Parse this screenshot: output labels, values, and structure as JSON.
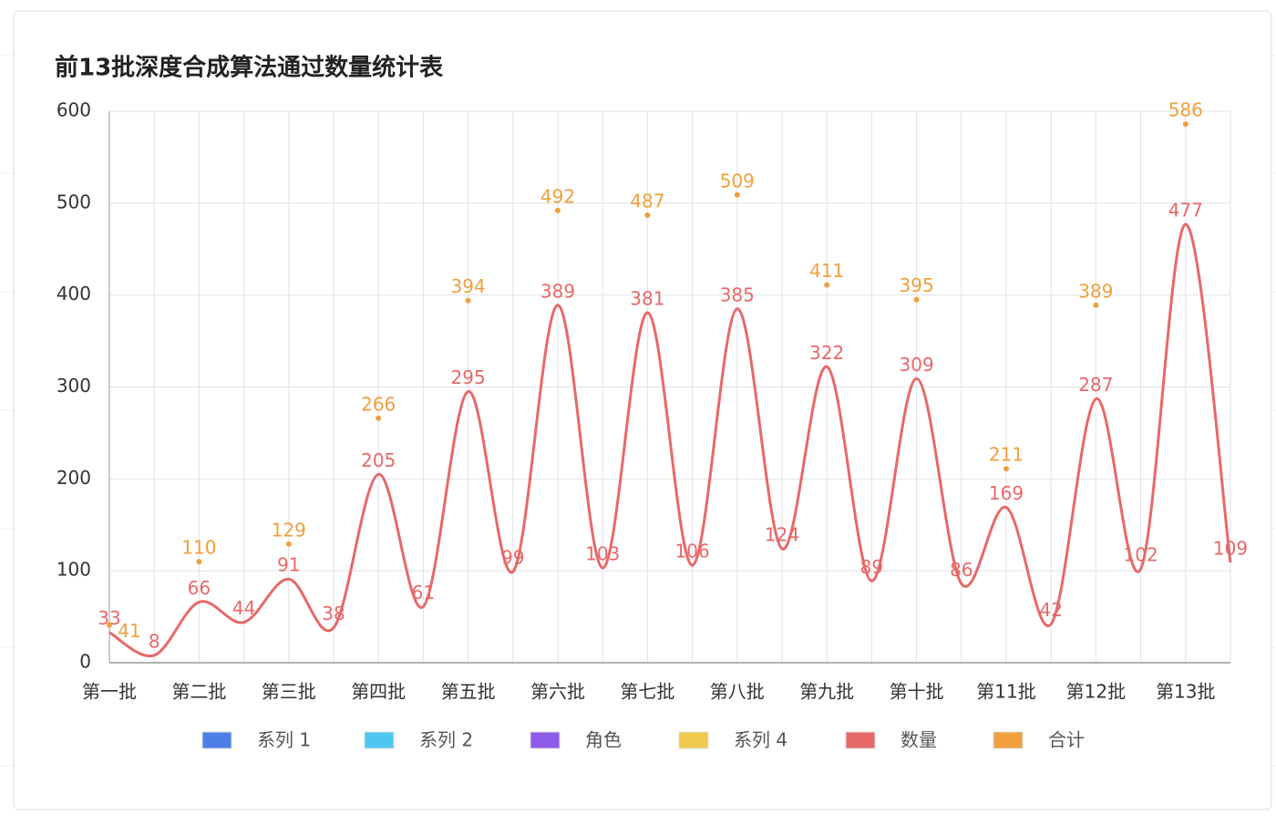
{
  "chart_data": {
    "type": "line",
    "title": "前13批深度合成算法通过数量统计表",
    "categories": [
      "第一批",
      null,
      "第二批",
      null,
      "第三批",
      null,
      "第四批",
      null,
      "第五批",
      null,
      "第六批",
      null,
      "第七批",
      null,
      "第八批",
      null,
      "第九批",
      null,
      "第十批",
      null,
      "第11批",
      null,
      "第12批",
      null,
      "第13批",
      null
    ],
    "series": [
      {
        "name": "系列 1",
        "color": "#4e7fe9",
        "values": [
          null,
          null,
          null,
          null,
          null,
          null,
          null,
          null,
          null,
          null,
          null,
          null,
          null,
          null,
          null,
          null,
          null,
          null,
          null,
          null,
          null,
          null,
          null,
          null,
          null,
          null
        ]
      },
      {
        "name": "系列 2",
        "color": "#4dc7f0",
        "values": [
          null,
          null,
          null,
          null,
          null,
          null,
          null,
          null,
          null,
          null,
          null,
          null,
          null,
          null,
          null,
          null,
          null,
          null,
          null,
          null,
          null,
          null,
          null,
          null,
          null,
          null
        ]
      },
      {
        "name": "角色",
        "color": "#8e5bea",
        "values": [
          null,
          null,
          null,
          null,
          null,
          null,
          null,
          null,
          null,
          null,
          null,
          null,
          null,
          null,
          null,
          null,
          null,
          null,
          null,
          null,
          null,
          null,
          null,
          null,
          null,
          null
        ]
      },
      {
        "name": "系列 4",
        "color": "#f0cb4e",
        "values": [
          null,
          null,
          null,
          null,
          null,
          null,
          null,
          null,
          null,
          null,
          null,
          null,
          null,
          null,
          null,
          null,
          null,
          null,
          null,
          null,
          null,
          null,
          null,
          null,
          null,
          null
        ]
      },
      {
        "name": "数量",
        "color": "#e86868",
        "values": [
          33,
          8,
          66,
          44,
          91,
          38,
          205,
          61,
          295,
          99,
          389,
          103,
          381,
          106,
          385,
          124,
          322,
          89,
          309,
          86,
          169,
          42,
          287,
          102,
          477,
          109
        ]
      },
      {
        "name": "合计",
        "color": "#f0a03c",
        "values": [
          41,
          null,
          110,
          null,
          129,
          null,
          266,
          null,
          394,
          null,
          492,
          null,
          487,
          null,
          509,
          null,
          411,
          null,
          395,
          null,
          211,
          null,
          389,
          null,
          586,
          null
        ]
      }
    ],
    "ylim": [
      0,
      600
    ],
    "yticks": [
      0,
      100,
      200,
      300,
      400,
      500,
      600
    ],
    "grid": true
  }
}
